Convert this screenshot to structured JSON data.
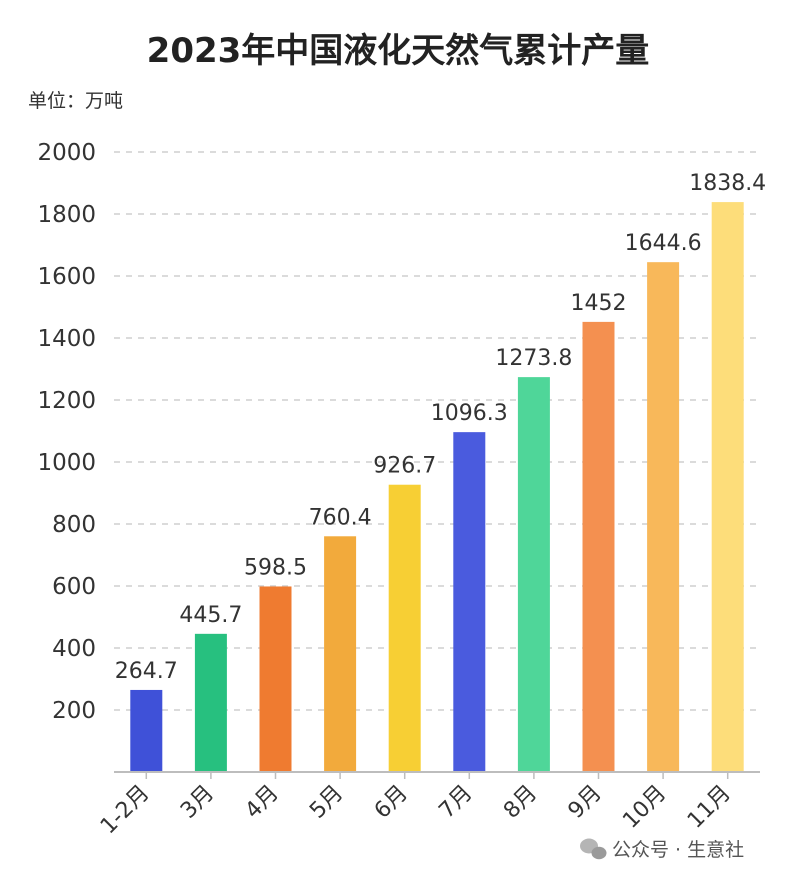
{
  "chart_data": {
    "type": "bar",
    "title": "2023年中国液化天然气累计产量",
    "unit_label": "单位：万吨",
    "categories": [
      "1-2月",
      "3月",
      "4月",
      "5月",
      "6月",
      "7月",
      "8月",
      "9月",
      "10月",
      "11月"
    ],
    "values": [
      264.7,
      445.7,
      598.5,
      760.4,
      926.7,
      1096.3,
      1273.8,
      1452,
      1644.6,
      1838.4
    ],
    "value_labels": [
      "264.7",
      "445.7",
      "598.5",
      "760.4",
      "926.7",
      "1096.3",
      "1273.8",
      "1452",
      "1644.6",
      "1838.4"
    ],
    "colors": [
      "#3f51d8",
      "#27c07f",
      "#ef7b30",
      "#f2aa3c",
      "#f7cf34",
      "#4a5bde",
      "#4fd699",
      "#f49050",
      "#f8b85a",
      "#fddd7a"
    ],
    "ylim": [
      0,
      2000
    ],
    "yticks": [
      "200",
      "400",
      "600",
      "800",
      "1000",
      "1200",
      "1400",
      "1600",
      "1800",
      "2000"
    ],
    "grid": true,
    "legend": "none"
  },
  "watermark": {
    "icon": "wechat-icon",
    "text": "公众号 · 生意社"
  }
}
